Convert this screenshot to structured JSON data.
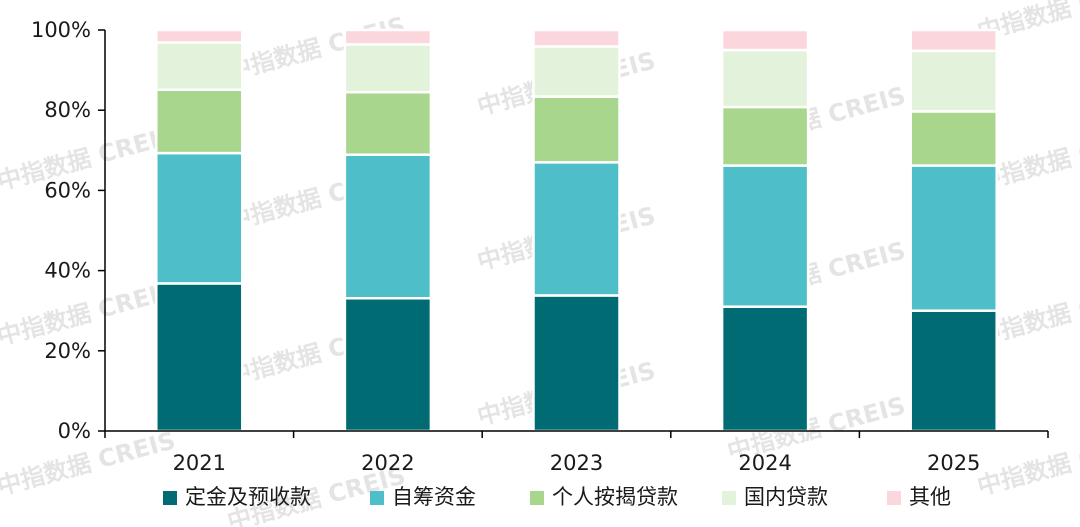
{
  "watermark": "中指数据 CREIS",
  "chart_data": {
    "type": "bar",
    "stacked": true,
    "categories": [
      "2021",
      "2022",
      "2023",
      "2024",
      "2025"
    ],
    "series": [
      {
        "name": "定金及预收款",
        "color": "#006b73",
        "values": [
          36.8,
          33.1,
          33.8,
          31.0,
          30.0
        ]
      },
      {
        "name": "自筹资金",
        "color": "#4ebfc8",
        "values": [
          32.5,
          35.8,
          33.2,
          35.2,
          36.2
        ]
      },
      {
        "name": "个人按揭贷款",
        "color": "#a8d68d",
        "values": [
          15.8,
          15.6,
          16.4,
          14.6,
          13.5
        ]
      },
      {
        "name": "国内贷款",
        "color": "#e3f2da",
        "values": [
          11.8,
          11.9,
          12.5,
          14.2,
          15.1
        ]
      },
      {
        "name": "其他",
        "color": "#fbd6dd",
        "values": [
          3.1,
          3.6,
          4.1,
          5.0,
          5.2
        ]
      }
    ],
    "yticks": [
      "0%",
      "20%",
      "40%",
      "60%",
      "80%",
      "100%"
    ],
    "ylim": [
      0,
      100
    ],
    "legend_position": "bottom",
    "grid": false
  }
}
